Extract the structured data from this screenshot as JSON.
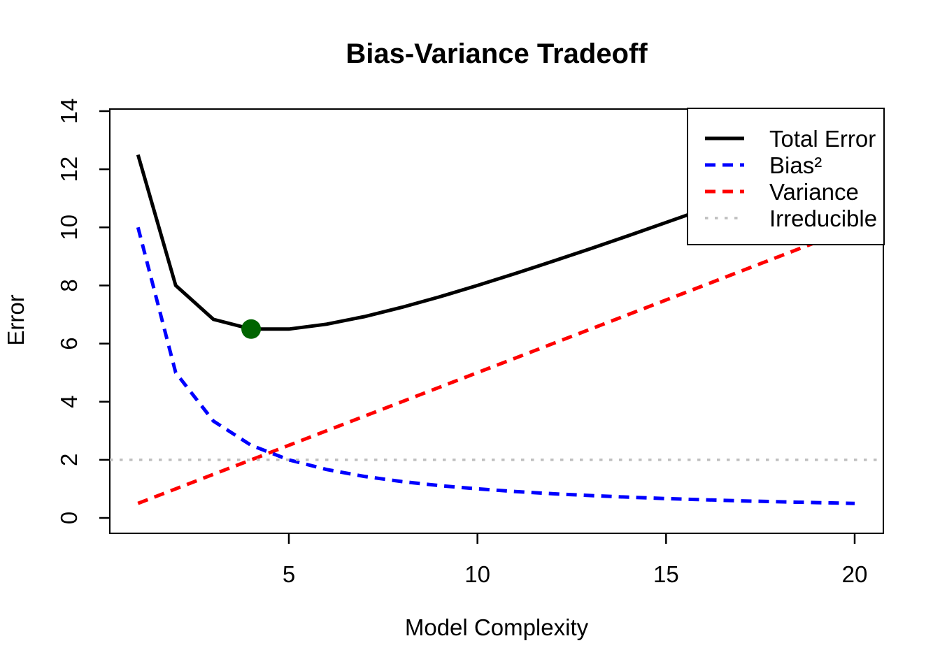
{
  "chart_data": {
    "type": "line",
    "title": "Bias-Variance Tradeoff",
    "xlabel": "Model Complexity",
    "ylabel": "Error",
    "x": [
      1,
      2,
      3,
      4,
      5,
      6,
      7,
      8,
      9,
      10,
      11,
      12,
      13,
      14,
      15,
      16,
      17,
      18,
      19,
      20
    ],
    "series": [
      {
        "id": "total-error",
        "name": "Total Error",
        "color": "#000000",
        "style": "solid",
        "values": [
          12.5,
          8,
          6.833,
          6.5,
          6.5,
          6.667,
          6.929,
          7.25,
          7.611,
          8,
          8.409,
          8.833,
          9.269,
          9.714,
          10.167,
          10.625,
          11.088,
          11.556,
          12.026,
          12.5
        ]
      },
      {
        "id": "bias-squared",
        "name": "Bias²",
        "color": "#0000FF",
        "style": "dashed",
        "values": [
          10,
          5,
          3.333,
          2.5,
          2,
          1.667,
          1.429,
          1.25,
          1.111,
          1,
          0.909,
          0.833,
          0.769,
          0.714,
          0.667,
          0.625,
          0.588,
          0.556,
          0.526,
          0.5
        ]
      },
      {
        "id": "variance",
        "name": "Variance",
        "color": "#FF0000",
        "style": "dashed",
        "values": [
          0.5,
          1,
          1.5,
          2,
          2.5,
          3,
          3.5,
          4,
          4.5,
          5,
          5.5,
          6,
          6.5,
          7,
          7.5,
          8,
          8.5,
          9,
          9.5,
          10
        ]
      },
      {
        "id": "irreducible",
        "name": "Irreducible",
        "color": "#BEBEBE",
        "style": "dotted",
        "type": "hline",
        "value": 2
      }
    ],
    "highlight_point": {
      "x": 4,
      "y": 6.5,
      "color": "#006400"
    },
    "x_ticks": [
      5,
      10,
      15,
      20
    ],
    "y_ticks": [
      0,
      2,
      4,
      6,
      8,
      10,
      12,
      14
    ],
    "xlim": [
      0.24,
      20.76
    ],
    "ylim": [
      -0.53,
      14.07
    ],
    "grid": false,
    "legend": {
      "position": "topright",
      "entries": [
        "Total Error",
        "Bias²",
        "Variance",
        "Irreducible"
      ]
    }
  }
}
